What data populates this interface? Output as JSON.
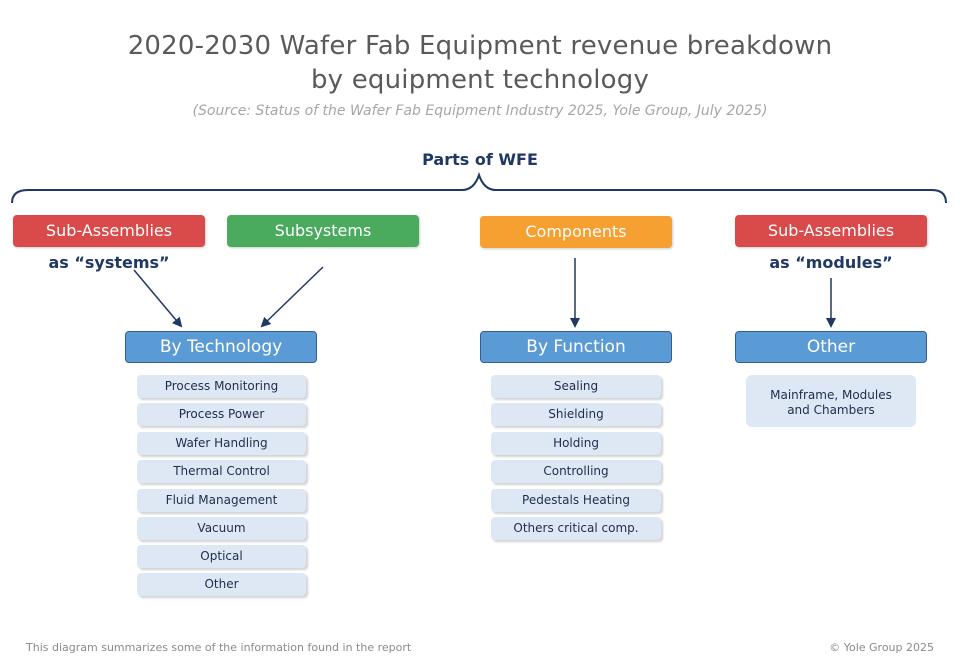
{
  "header": {
    "title_line1": "2020-2030 Wafer Fab Equipment revenue breakdown",
    "title_line2": "by equipment technology",
    "source": "(Source: Status of the Wafer Fab Equipment Industry 2025, Yole Group, July 2025)"
  },
  "diagram": {
    "parts_label": "Parts of WFE",
    "categories": {
      "sub_assemblies_systems": "Sub-Assemblies",
      "systems_note": "as “systems”",
      "subsystems": "Subsystems",
      "components": "Components",
      "sub_assemblies_modules": "Sub-Assemblies",
      "modules_note": "as “modules”"
    },
    "colors": {
      "red": "#d94a4a",
      "green": "#4aaa5e",
      "orange": "#f5a030",
      "blue": "#5b9bd5",
      "light_blue": "#dde8f4",
      "navy": "#1f3864"
    },
    "groups": {
      "by_technology": {
        "label": "By Technology",
        "items": [
          "Process Monitoring",
          "Process Power",
          "Wafer Handling",
          "Thermal Control",
          "Fluid Management",
          "Vacuum",
          "Optical",
          "Other"
        ]
      },
      "by_function": {
        "label": "By Function",
        "items": [
          "Sealing",
          "Shielding",
          "Holding",
          "Controlling",
          "Pedestals Heating",
          "Others critical comp."
        ]
      },
      "other": {
        "label": "Other",
        "item_line1": "Mainframe, Modules",
        "item_line2": "and Chambers"
      }
    }
  },
  "footer": {
    "note": "This diagram summarizes some of the information found in the report",
    "copyright": "© Yole Group 2025"
  }
}
